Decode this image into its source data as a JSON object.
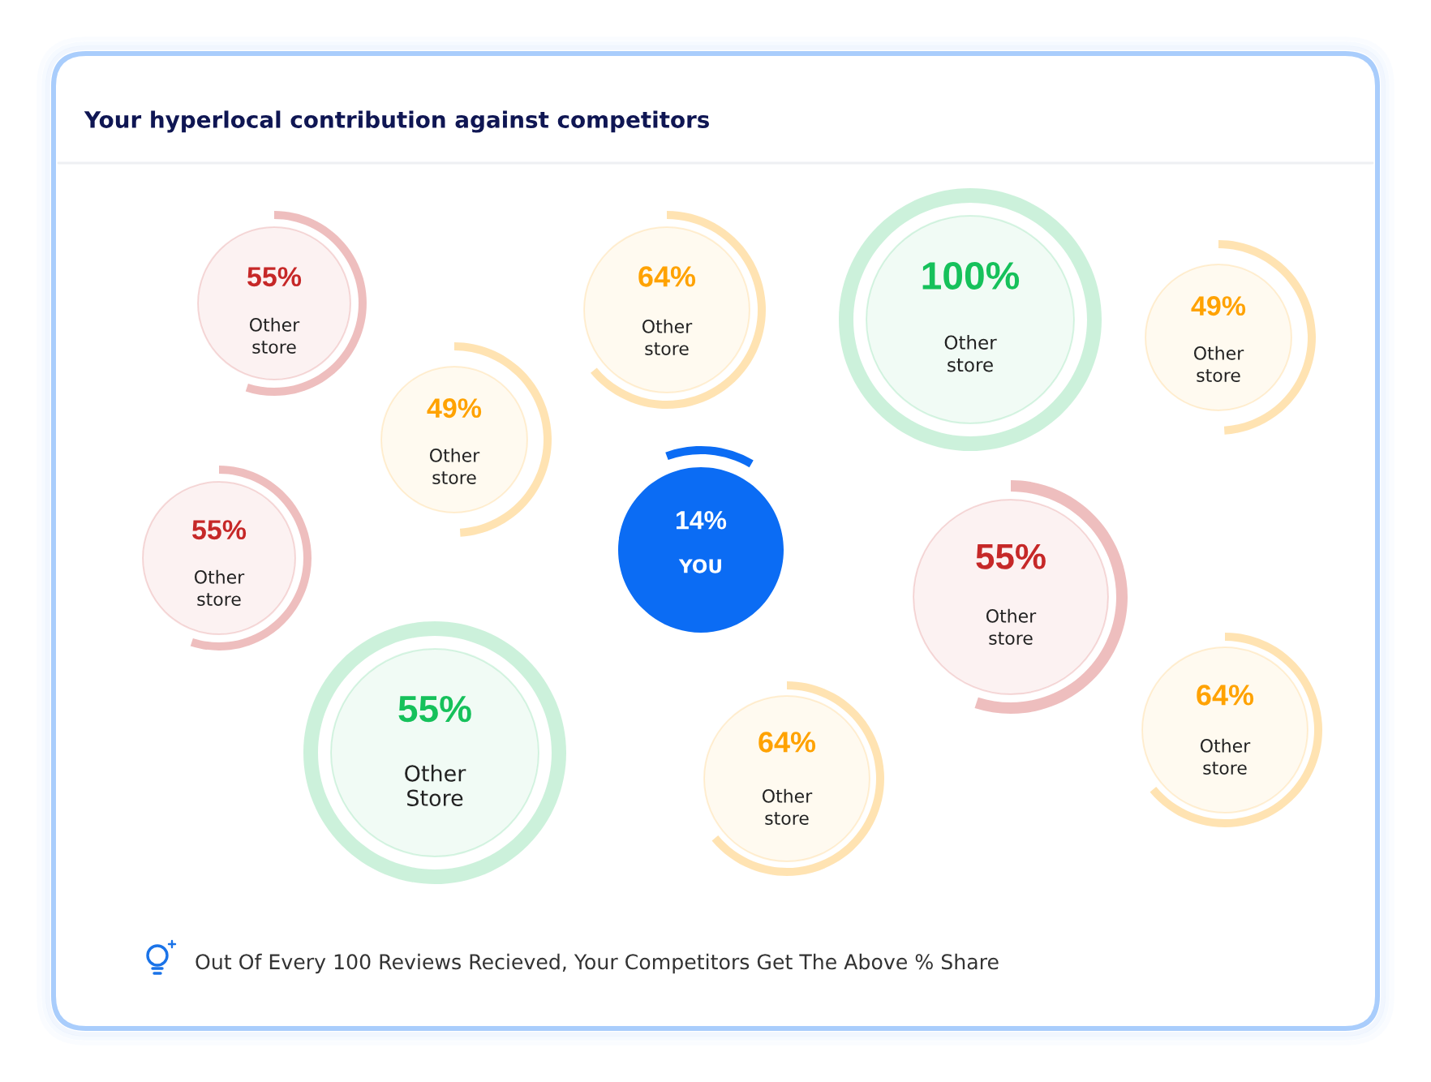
{
  "chart_data": {
    "type": "other",
    "title": "Your hyperlocal contribution against competitors",
    "categories": [
      "Other store",
      "Other store",
      "Other store",
      "Other store",
      "Other store",
      "Other store",
      "YOU",
      "Other store",
      "Other Store",
      "Other store",
      "Other store"
    ],
    "values": [
      55,
      64,
      100,
      49,
      49,
      55,
      14,
      55,
      55,
      64,
      64
    ],
    "value_labels": [
      "55%",
      "64%",
      "100%",
      "49%",
      "49%",
      "55%",
      "14%",
      "55%",
      "55%",
      "64%",
      "64%"
    ],
    "colors": [
      "#c62828",
      "#ffa200",
      "#16c15b",
      "#ffa200",
      "#ffa200",
      "#c62828",
      "#0b6cf4",
      "#c62828",
      "#16c15b",
      "#ffa200",
      "#ffa200"
    ],
    "annotations": [
      "Out Of Every 100 Reviews Recieved, Your Competitors Get The Above % Share"
    ]
  }
}
